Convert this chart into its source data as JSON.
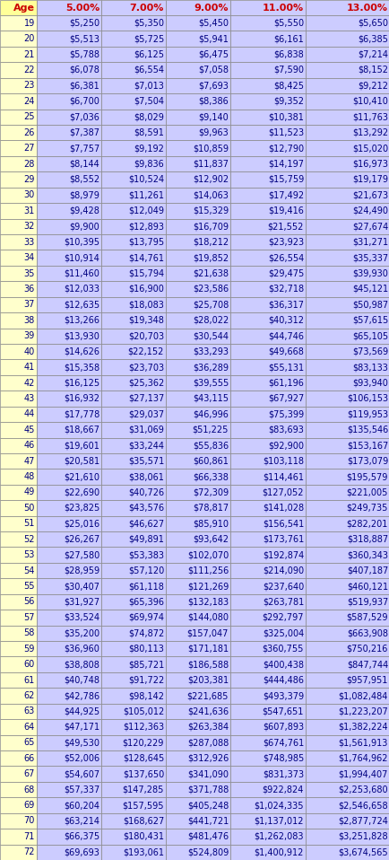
{
  "headers": [
    "Age",
    "5.00%",
    "7.00%",
    "9.00%",
    "11.00%",
    "13.00%"
  ],
  "rows": [
    [
      19,
      "$5,250",
      "$5,350",
      "$5,450",
      "$5,550",
      "$5,650"
    ],
    [
      20,
      "$5,513",
      "$5,725",
      "$5,941",
      "$6,161",
      "$6,385"
    ],
    [
      21,
      "$5,788",
      "$6,125",
      "$6,475",
      "$6,838",
      "$7,214"
    ],
    [
      22,
      "$6,078",
      "$6,554",
      "$7,058",
      "$7,590",
      "$8,152"
    ],
    [
      23,
      "$6,381",
      "$7,013",
      "$7,693",
      "$8,425",
      "$9,212"
    ],
    [
      24,
      "$6,700",
      "$7,504",
      "$8,386",
      "$9,352",
      "$10,410"
    ],
    [
      25,
      "$7,036",
      "$8,029",
      "$9,140",
      "$10,381",
      "$11,763"
    ],
    [
      26,
      "$7,387",
      "$8,591",
      "$9,963",
      "$11,523",
      "$13,292"
    ],
    [
      27,
      "$7,757",
      "$9,192",
      "$10,859",
      "$12,790",
      "$15,020"
    ],
    [
      28,
      "$8,144",
      "$9,836",
      "$11,837",
      "$14,197",
      "$16,973"
    ],
    [
      29,
      "$8,552",
      "$10,524",
      "$12,902",
      "$15,759",
      "$19,179"
    ],
    [
      30,
      "$8,979",
      "$11,261",
      "$14,063",
      "$17,492",
      "$21,673"
    ],
    [
      31,
      "$9,428",
      "$12,049",
      "$15,329",
      "$19,416",
      "$24,490"
    ],
    [
      32,
      "$9,900",
      "$12,893",
      "$16,709",
      "$21,552",
      "$27,674"
    ],
    [
      33,
      "$10,395",
      "$13,795",
      "$18,212",
      "$23,923",
      "$31,271"
    ],
    [
      34,
      "$10,914",
      "$14,761",
      "$19,852",
      "$26,554",
      "$35,337"
    ],
    [
      35,
      "$11,460",
      "$15,794",
      "$21,638",
      "$29,475",
      "$39,930"
    ],
    [
      36,
      "$12,033",
      "$16,900",
      "$23,586",
      "$32,718",
      "$45,121"
    ],
    [
      37,
      "$12,635",
      "$18,083",
      "$25,708",
      "$36,317",
      "$50,987"
    ],
    [
      38,
      "$13,266",
      "$19,348",
      "$28,022",
      "$40,312",
      "$57,615"
    ],
    [
      39,
      "$13,930",
      "$20,703",
      "$30,544",
      "$44,746",
      "$65,105"
    ],
    [
      40,
      "$14,626",
      "$22,152",
      "$33,293",
      "$49,668",
      "$73,569"
    ],
    [
      41,
      "$15,358",
      "$23,703",
      "$36,289",
      "$55,131",
      "$83,133"
    ],
    [
      42,
      "$16,125",
      "$25,362",
      "$39,555",
      "$61,196",
      "$93,940"
    ],
    [
      43,
      "$16,932",
      "$27,137",
      "$43,115",
      "$67,927",
      "$106,153"
    ],
    [
      44,
      "$17,778",
      "$29,037",
      "$46,996",
      "$75,399",
      "$119,953"
    ],
    [
      45,
      "$18,667",
      "$31,069",
      "$51,225",
      "$83,693",
      "$135,546"
    ],
    [
      46,
      "$19,601",
      "$33,244",
      "$55,836",
      "$92,900",
      "$153,167"
    ],
    [
      47,
      "$20,581",
      "$35,571",
      "$60,861",
      "$103,118",
      "$173,079"
    ],
    [
      48,
      "$21,610",
      "$38,061",
      "$66,338",
      "$114,461",
      "$195,579"
    ],
    [
      49,
      "$22,690",
      "$40,726",
      "$72,309",
      "$127,052",
      "$221,005"
    ],
    [
      50,
      "$23,825",
      "$43,576",
      "$78,817",
      "$141,028",
      "$249,735"
    ],
    [
      51,
      "$25,016",
      "$46,627",
      "$85,910",
      "$156,541",
      "$282,201"
    ],
    [
      52,
      "$26,267",
      "$49,891",
      "$93,642",
      "$173,761",
      "$318,887"
    ],
    [
      53,
      "$27,580",
      "$53,383",
      "$102,070",
      "$192,874",
      "$360,343"
    ],
    [
      54,
      "$28,959",
      "$57,120",
      "$111,256",
      "$214,090",
      "$407,187"
    ],
    [
      55,
      "$30,407",
      "$61,118",
      "$121,269",
      "$237,640",
      "$460,121"
    ],
    [
      56,
      "$31,927",
      "$65,396",
      "$132,183",
      "$263,781",
      "$519,937"
    ],
    [
      57,
      "$33,524",
      "$69,974",
      "$144,080",
      "$292,797",
      "$587,529"
    ],
    [
      58,
      "$35,200",
      "$74,872",
      "$157,047",
      "$325,004",
      "$663,908"
    ],
    [
      59,
      "$36,960",
      "$80,113",
      "$171,181",
      "$360,755",
      "$750,216"
    ],
    [
      60,
      "$38,808",
      "$85,721",
      "$186,588",
      "$400,438",
      "$847,744"
    ],
    [
      61,
      "$40,748",
      "$91,722",
      "$203,381",
      "$444,486",
      "$957,951"
    ],
    [
      62,
      "$42,786",
      "$98,142",
      "$221,685",
      "$493,379",
      "$1,082,484"
    ],
    [
      63,
      "$44,925",
      "$105,012",
      "$241,636",
      "$547,651",
      "$1,223,207"
    ],
    [
      64,
      "$47,171",
      "$112,363",
      "$263,384",
      "$607,893",
      "$1,382,224"
    ],
    [
      65,
      "$49,530",
      "$120,229",
      "$287,088",
      "$674,761",
      "$1,561,913"
    ],
    [
      66,
      "$52,006",
      "$128,645",
      "$312,926",
      "$748,985",
      "$1,764,962"
    ],
    [
      67,
      "$54,607",
      "$137,650",
      "$341,090",
      "$831,373",
      "$1,994,407"
    ],
    [
      68,
      "$57,337",
      "$147,285",
      "$371,788",
      "$922,824",
      "$2,253,680"
    ],
    [
      69,
      "$60,204",
      "$157,595",
      "$405,248",
      "$1,024,335",
      "$2,546,658"
    ],
    [
      70,
      "$63,214",
      "$168,627",
      "$441,721",
      "$1,137,012",
      "$2,877,724"
    ],
    [
      71,
      "$66,375",
      "$180,431",
      "$481,476",
      "$1,262,083",
      "$3,251,828"
    ],
    [
      72,
      "$69,693",
      "$193,061",
      "$524,809",
      "$1,400,912",
      "$3,674,565"
    ]
  ],
  "header_bg_col0": "#FFFF99",
  "header_bg_data": "#CCCCFF",
  "col0_bg": "#FFFFCC",
  "data_bg": "#CCCCFF",
  "header_text_color": "#CC0000",
  "data_text_color": "#000080",
  "border_color": "#888888",
  "font_size": 7.0,
  "header_font_size": 8.0,
  "fig_width": 4.35,
  "fig_height": 9.58,
  "dpi": 100
}
